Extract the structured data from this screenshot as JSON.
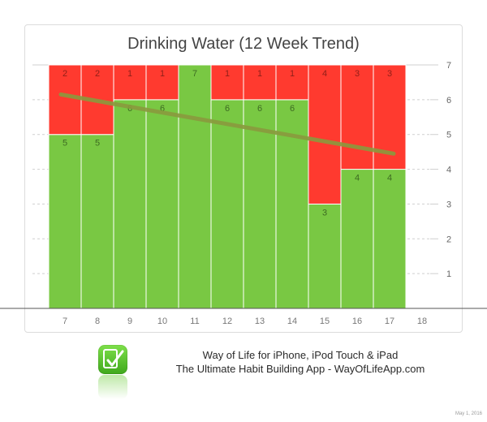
{
  "chart_data": {
    "type": "bar",
    "stacked": true,
    "title": "Drinking Water (12 Week Trend)",
    "categories": [
      "7",
      "8",
      "9",
      "10",
      "11",
      "12",
      "13",
      "14",
      "15",
      "16",
      "17",
      "18"
    ],
    "series": [
      {
        "values": [
          5,
          5,
          6,
          6,
          7,
          6,
          6,
          6,
          3,
          4,
          4,
          null
        ],
        "color": "#79c843"
      },
      {
        "values": [
          2,
          2,
          1,
          1,
          null,
          1,
          1,
          1,
          4,
          3,
          3,
          null
        ],
        "color": "#ff3a2f"
      }
    ],
    "trend": {
      "start": 6.15,
      "end": 4.45,
      "color": "#8a9a3e"
    },
    "yticks": [
      "1",
      "2",
      "3",
      "4",
      "5",
      "6",
      "7"
    ],
    "ylim": [
      0,
      7
    ],
    "grid": true,
    "axis_side": "right"
  },
  "footer": {
    "line1": "Way of Life for iPhone, iPod Touch & iPad",
    "line2": "The Ultimate Habit Building App - WayOfLifeApp.com",
    "icon": "checkmark-app-icon",
    "date": "May 1, 2016"
  }
}
